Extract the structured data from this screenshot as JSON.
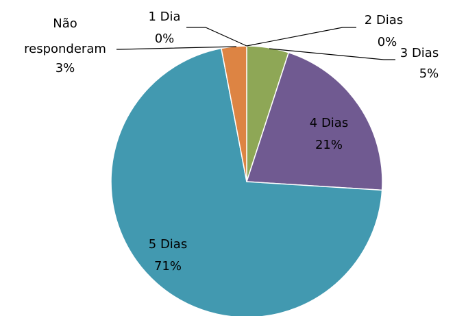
{
  "chart_data": {
    "type": "pie",
    "categories": [
      "1 Dia",
      "2 Dias",
      "3 Dias",
      "4 Dias",
      "5 Dias",
      "Não responderam"
    ],
    "values": [
      0,
      0,
      5,
      21,
      71,
      3
    ],
    "value_labels": [
      "0%",
      "0%",
      "5%",
      "21%",
      "71%",
      "3%"
    ],
    "colors": [
      "#4f81bd",
      "#c0504d",
      "#8ea756",
      "#705a91",
      "#4299b0",
      "#dd8443"
    ]
  }
}
